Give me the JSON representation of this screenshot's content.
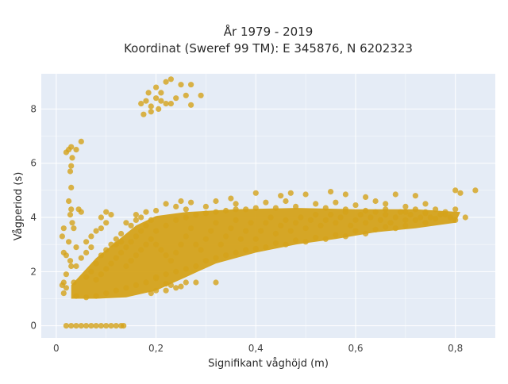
{
  "chart_data": {
    "type": "scatter",
    "title": "År 1979 - 2019",
    "subtitle": "Koordinat (Sweref 99 TM): E 345876, N 6202323",
    "xlabel": "Signifikant våghöjd (m)",
    "ylabel": "Vågperiod (s)",
    "xlim": [
      -0.03,
      0.88
    ],
    "ylim": [
      -0.45,
      9.3
    ],
    "xticks": [
      0,
      0.2,
      0.4,
      0.6,
      0.8
    ],
    "xtick_labels": [
      "0",
      "0,2",
      "0,4",
      "0,6",
      "0,8"
    ],
    "yticks": [
      0,
      2,
      4,
      6,
      8
    ],
    "ytick_labels": [
      "0",
      "2",
      "4",
      "6",
      "8"
    ],
    "grid": true,
    "legend": "none",
    "colors": {
      "marker": "#d4a21a",
      "plot_bg": "#e5ecf6",
      "grid": "#ffffff"
    },
    "series": [
      {
        "points": [
          [
            0.02,
            0
          ],
          [
            0.03,
            0
          ],
          [
            0.04,
            0
          ],
          [
            0.05,
            0
          ],
          [
            0.06,
            0
          ],
          [
            0.07,
            0
          ],
          [
            0.08,
            0
          ],
          [
            0.09,
            0
          ],
          [
            0.1,
            0
          ],
          [
            0.11,
            0
          ],
          [
            0.12,
            0
          ],
          [
            0.13,
            0
          ],
          [
            0.135,
            0
          ],
          [
            0.02,
            6.4
          ],
          [
            0.025,
            6.5
          ],
          [
            0.03,
            6.6
          ],
          [
            0.032,
            6.2
          ],
          [
            0.03,
            5.9
          ],
          [
            0.028,
            5.7
          ],
          [
            0.04,
            6.5
          ],
          [
            0.05,
            6.8
          ],
          [
            0.025,
            4.6
          ],
          [
            0.03,
            4.3
          ],
          [
            0.028,
            4.1
          ],
          [
            0.032,
            3.8
          ],
          [
            0.035,
            3.6
          ],
          [
            0.03,
            5.1
          ],
          [
            0.015,
            3.6
          ],
          [
            0.012,
            3.3
          ],
          [
            0.015,
            2.7
          ],
          [
            0.02,
            2.6
          ],
          [
            0.025,
            3.1
          ],
          [
            0.028,
            2.4
          ],
          [
            0.015,
            1.6
          ],
          [
            0.012,
            1.5
          ],
          [
            0.015,
            1.2
          ],
          [
            0.02,
            1.4
          ],
          [
            0.02,
            1.9
          ],
          [
            0.03,
            2.2
          ],
          [
            0.04,
            2.9
          ],
          [
            0.045,
            4.3
          ],
          [
            0.05,
            4.2
          ],
          [
            0.17,
            8.2
          ],
          [
            0.18,
            8.3
          ],
          [
            0.175,
            7.8
          ],
          [
            0.19,
            8.1
          ],
          [
            0.2,
            8.4
          ],
          [
            0.21,
            8.3
          ],
          [
            0.22,
            8.2
          ],
          [
            0.23,
            8.2
          ],
          [
            0.2,
            8.8
          ],
          [
            0.21,
            8.6
          ],
          [
            0.22,
            9.0
          ],
          [
            0.23,
            9.1
          ],
          [
            0.25,
            8.9
          ],
          [
            0.26,
            8.5
          ],
          [
            0.27,
            8.9
          ],
          [
            0.27,
            8.15
          ],
          [
            0.29,
            8.5
          ],
          [
            0.24,
            8.4
          ],
          [
            0.19,
            7.9
          ],
          [
            0.185,
            8.6
          ],
          [
            0.205,
            8.0
          ],
          [
            0.84,
            5.0
          ],
          [
            0.8,
            5.0
          ],
          [
            0.81,
            4.9
          ],
          [
            0.72,
            4.8
          ],
          [
            0.68,
            4.85
          ],
          [
            0.62,
            4.75
          ],
          [
            0.58,
            4.85
          ],
          [
            0.55,
            4.95
          ],
          [
            0.5,
            4.85
          ],
          [
            0.47,
            4.9
          ],
          [
            0.45,
            4.8
          ],
          [
            0.4,
            4.9
          ],
          [
            0.35,
            4.7
          ],
          [
            0.32,
            4.6
          ],
          [
            0.27,
            4.55
          ],
          [
            0.22,
            4.5
          ],
          [
            0.26,
            4.3
          ],
          [
            0.25,
            4.6
          ],
          [
            0.16,
            4.1
          ],
          [
            0.17,
            4.0
          ],
          [
            0.18,
            4.2
          ],
          [
            0.2,
            1.3
          ],
          [
            0.22,
            1.3
          ],
          [
            0.24,
            1.4
          ],
          [
            0.23,
            1.5
          ],
          [
            0.26,
            1.6
          ],
          [
            0.28,
            1.6
          ],
          [
            0.32,
            1.6
          ],
          [
            0.2,
            1.75
          ],
          [
            0.22,
            1.55
          ],
          [
            0.25,
            1.45
          ],
          [
            0.19,
            1.2
          ],
          [
            0.06,
            3.1
          ],
          [
            0.07,
            3.3
          ],
          [
            0.08,
            3.5
          ],
          [
            0.09,
            4.0
          ],
          [
            0.1,
            4.2
          ],
          [
            0.1,
            3.8
          ],
          [
            0.11,
            4.1
          ],
          [
            0.09,
            3.6
          ],
          [
            0.12,
            3.2
          ],
          [
            0.13,
            3.4
          ],
          [
            0.15,
            3.7
          ],
          [
            0.14,
            3.8
          ],
          [
            0.16,
            3.9
          ],
          [
            0.2,
            4.25
          ],
          [
            0.24,
            4.4
          ],
          [
            0.3,
            4.4
          ],
          [
            0.36,
            4.5
          ],
          [
            0.42,
            4.55
          ],
          [
            0.46,
            4.6
          ],
          [
            0.52,
            4.5
          ],
          [
            0.56,
            4.55
          ],
          [
            0.6,
            4.45
          ],
          [
            0.64,
            4.6
          ],
          [
            0.66,
            4.5
          ],
          [
            0.7,
            4.4
          ],
          [
            0.74,
            4.5
          ],
          [
            0.78,
            4.2
          ],
          [
            0.8,
            4.3
          ],
          [
            0.8,
            3.9
          ],
          [
            0.82,
            4.0
          ],
          [
            0.76,
            3.95
          ],
          [
            0.74,
            3.8
          ],
          [
            0.72,
            3.9
          ],
          [
            0.7,
            3.7
          ],
          [
            0.68,
            3.6
          ],
          [
            0.66,
            3.65
          ],
          [
            0.64,
            3.55
          ],
          [
            0.62,
            3.4
          ],
          [
            0.6,
            3.5
          ],
          [
            0.58,
            3.3
          ],
          [
            0.56,
            3.35
          ],
          [
            0.54,
            3.2
          ],
          [
            0.52,
            3.25
          ],
          [
            0.5,
            3.1
          ],
          [
            0.48,
            3.15
          ],
          [
            0.46,
            3.0
          ],
          [
            0.44,
            3.05
          ],
          [
            0.42,
            2.9
          ],
          [
            0.4,
            2.85
          ],
          [
            0.38,
            2.8
          ],
          [
            0.36,
            2.7
          ],
          [
            0.34,
            2.6
          ],
          [
            0.32,
            2.5
          ],
          [
            0.3,
            2.4
          ],
          [
            0.28,
            2.2
          ],
          [
            0.26,
            2.1
          ],
          [
            0.24,
            2.0
          ],
          [
            0.22,
            1.9
          ],
          [
            0.2,
            1.8
          ],
          [
            0.18,
            1.6
          ],
          [
            0.16,
            1.5
          ],
          [
            0.14,
            1.4
          ],
          [
            0.12,
            1.3
          ],
          [
            0.1,
            1.2
          ],
          [
            0.08,
            1.1
          ],
          [
            0.06,
            1.05
          ],
          [
            0.04,
            1.1
          ],
          [
            0.035,
            1.6
          ],
          [
            0.04,
            2.2
          ],
          [
            0.05,
            2.5
          ],
          [
            0.06,
            2.7
          ],
          [
            0.07,
            2.9
          ],
          [
            0.08,
            1.7
          ],
          [
            0.09,
            1.9
          ],
          [
            0.1,
            2.1
          ],
          [
            0.11,
            2.3
          ],
          [
            0.12,
            2.5
          ],
          [
            0.13,
            2.7
          ],
          [
            0.14,
            2.9
          ],
          [
            0.15,
            3.1
          ],
          [
            0.16,
            3.3
          ],
          [
            0.17,
            3.5
          ],
          [
            0.18,
            3.7
          ],
          [
            0.19,
            3.9
          ],
          [
            0.2,
            3.5
          ],
          [
            0.22,
            3.7
          ],
          [
            0.24,
            3.9
          ],
          [
            0.26,
            4.0
          ],
          [
            0.28,
            4.1
          ],
          [
            0.3,
            4.15
          ],
          [
            0.32,
            4.2
          ],
          [
            0.34,
            4.25
          ],
          [
            0.36,
            4.3
          ],
          [
            0.38,
            4.3
          ],
          [
            0.4,
            4.35
          ],
          [
            0.44,
            4.35
          ],
          [
            0.48,
            4.4
          ],
          [
            0.54,
            4.35
          ],
          [
            0.58,
            4.3
          ],
          [
            0.62,
            4.25
          ],
          [
            0.66,
            4.3
          ],
          [
            0.7,
            4.2
          ],
          [
            0.74,
            4.15
          ],
          [
            0.78,
            4.1
          ],
          [
            0.06,
            1.8
          ],
          [
            0.07,
            2.0
          ],
          [
            0.08,
            2.3
          ],
          [
            0.09,
            2.6
          ],
          [
            0.1,
            2.8
          ],
          [
            0.11,
            3.0
          ],
          [
            0.12,
            3.0
          ],
          [
            0.13,
            3.1
          ],
          [
            0.14,
            2.2
          ],
          [
            0.15,
            2.4
          ],
          [
            0.16,
            2.6
          ],
          [
            0.17,
            2.8
          ],
          [
            0.18,
            3.0
          ],
          [
            0.19,
            3.2
          ],
          [
            0.2,
            3.0
          ],
          [
            0.21,
            2.8
          ],
          [
            0.22,
            2.6
          ],
          [
            0.23,
            2.4
          ],
          [
            0.24,
            2.7
          ],
          [
            0.25,
            3.0
          ],
          [
            0.26,
            3.3
          ],
          [
            0.27,
            3.6
          ],
          [
            0.28,
            3.0
          ],
          [
            0.29,
            2.8
          ],
          [
            0.3,
            3.2
          ],
          [
            0.31,
            3.5
          ],
          [
            0.32,
            3.8
          ],
          [
            0.33,
            3.0
          ],
          [
            0.34,
            3.3
          ],
          [
            0.35,
            3.6
          ],
          [
            0.36,
            3.9
          ],
          [
            0.37,
            3.2
          ],
          [
            0.38,
            3.5
          ],
          [
            0.39,
            3.8
          ],
          [
            0.4,
            3.2
          ],
          [
            0.41,
            3.5
          ],
          [
            0.42,
            3.8
          ],
          [
            0.43,
            4.0
          ],
          [
            0.44,
            3.4
          ],
          [
            0.45,
            3.7
          ],
          [
            0.46,
            3.9
          ],
          [
            0.47,
            3.5
          ],
          [
            0.48,
            3.8
          ],
          [
            0.49,
            4.0
          ],
          [
            0.5,
            3.6
          ],
          [
            0.51,
            3.9
          ],
          [
            0.52,
            4.1
          ],
          [
            0.53,
            3.7
          ],
          [
            0.54,
            3.9
          ],
          [
            0.55,
            4.1
          ],
          [
            0.56,
            3.8
          ],
          [
            0.57,
            4.0
          ],
          [
            0.58,
            4.2
          ],
          [
            0.59,
            3.7
          ],
          [
            0.6,
            3.9
          ],
          [
            0.61,
            4.1
          ],
          [
            0.62,
            3.8
          ],
          [
            0.63,
            4.0
          ],
          [
            0.64,
            4.2
          ],
          [
            0.65,
            3.9
          ],
          [
            0.66,
            4.1
          ],
          [
            0.67,
            3.8
          ],
          [
            0.68,
            4.0
          ],
          [
            0.69,
            4.2
          ],
          [
            0.7,
            3.9
          ],
          [
            0.71,
            4.1
          ],
          [
            0.72,
            4.3
          ],
          [
            0.73,
            4.0
          ],
          [
            0.74,
            4.2
          ],
          [
            0.75,
            4.0
          ],
          [
            0.76,
            4.3
          ],
          [
            0.77,
            4.1
          ],
          [
            0.79,
            4.0
          ]
        ]
      }
    ]
  }
}
